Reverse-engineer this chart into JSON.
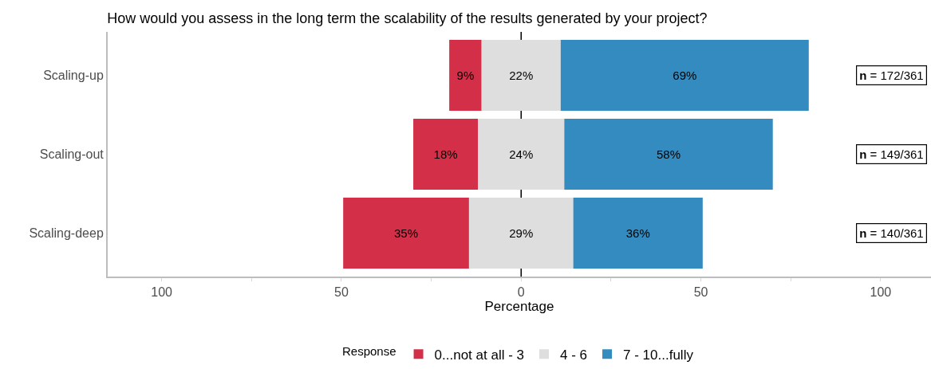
{
  "chart_data": {
    "type": "bar",
    "orientation": "horizontal",
    "stacked": true,
    "title": "How would you assess in the long term the scalability of the results generated by your project?",
    "xlabel": "Percentage",
    "legend_title": "Response",
    "legend": "bottom",
    "categories": [
      "Scaling-up",
      "Scaling-out",
      "Scaling-deep"
    ],
    "series": [
      {
        "name": "0...not at all - 3",
        "color": "#d42f48",
        "values": [
          9,
          18,
          35
        ],
        "base": [
          -20,
          -30,
          -49.5
        ],
        "value_labels": [
          "9%",
          "18%",
          "35%"
        ]
      },
      {
        "name": "4 - 6",
        "color": "#dedede",
        "values": [
          22,
          24,
          29
        ],
        "base": [
          -11,
          -12,
          -14.5
        ],
        "value_labels": [
          "22%",
          "24%",
          "29%"
        ]
      },
      {
        "name": "7 - 10...fully",
        "color": "#348bbf",
        "values": [
          69,
          58,
          36
        ],
        "base": [
          11,
          12,
          14.5
        ],
        "value_labels": [
          "69%",
          "58%",
          "36%"
        ]
      }
    ],
    "xlim": [
      -115,
      114
    ],
    "xticks": [
      {
        "value": -100,
        "label": "100"
      },
      {
        "value": -75,
        "label": null
      },
      {
        "value": -50,
        "label": "50"
      },
      {
        "value": -25,
        "label": null
      },
      0,
      {
        "value": 25,
        "label": null
      },
      {
        "value": 50,
        "label": "50"
      },
      {
        "value": 75,
        "label": null
      },
      {
        "value": 100,
        "label": "100"
      }
    ],
    "ref_lines": [
      {
        "axis": "x",
        "value": 0,
        "label": null,
        "color": "#000000"
      }
    ],
    "annotations": [
      "n = 172/361",
      "n = 149/361",
      "n = 140/361"
    ]
  }
}
